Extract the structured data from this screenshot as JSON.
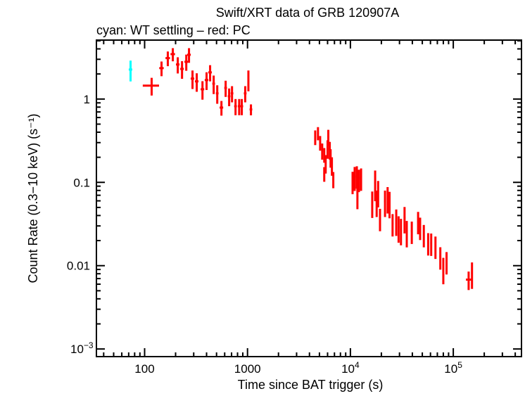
{
  "chart_data": {
    "type": "scatter",
    "title": "Swift/XRT data of GRB 120907A",
    "subtitle": "cyan: WT settling – red: PC",
    "xlabel": "Time since BAT trigger (s)",
    "ylabel": "Count Rate (0.3−10 keV) (s⁻¹)",
    "x_scale": "log",
    "y_scale": "log",
    "xlim": [
      34,
      460000
    ],
    "ylim": [
      0.00081,
      5.1
    ],
    "x_ticks": [
      {
        "value": 100,
        "label": "100"
      },
      {
        "value": 1000,
        "label": "1000"
      },
      {
        "value": 10000,
        "label": "10",
        "exp": "4"
      },
      {
        "value": 100000,
        "label": "10",
        "exp": "5"
      }
    ],
    "y_ticks": [
      {
        "value": 1,
        "label": "1"
      },
      {
        "value": 0.1,
        "label": "0.1"
      },
      {
        "value": 0.01,
        "label": "0.01"
      },
      {
        "value": 0.001,
        "label": "10",
        "exp": "−3"
      }
    ],
    "grid": false,
    "series": [
      {
        "name": "WT settling",
        "color": "#00ffff",
        "points": [
          [
            73,
            2.26,
            0.04,
            0.28
          ]
        ]
      },
      {
        "name": "PC",
        "color": "#ff0000",
        "points": [
          [
            117,
            1.45,
            0.18,
            0.24
          ],
          [
            146,
            2.35,
            0.05,
            0.2
          ],
          [
            168,
            3.1,
            0.05,
            0.2
          ],
          [
            188,
            3.46,
            0.05,
            0.18
          ],
          [
            210,
            2.6,
            0.04,
            0.22
          ],
          [
            231,
            2.3,
            0.04,
            0.24
          ],
          [
            254,
            2.8,
            0.04,
            0.22
          ],
          [
            270,
            3.4,
            0.04,
            0.2
          ],
          [
            292,
            1.76,
            0.04,
            0.25
          ],
          [
            321,
            1.63,
            0.04,
            0.25
          ],
          [
            365,
            1.31,
            0.04,
            0.25
          ],
          [
            400,
            1.69,
            0.04,
            0.24
          ],
          [
            433,
            2.09,
            0.04,
            0.22
          ],
          [
            469,
            1.53,
            0.03,
            0.25
          ],
          [
            508,
            1.17,
            0.03,
            0.25
          ],
          [
            558,
            0.79,
            0.04,
            0.2
          ],
          [
            613,
            1.36,
            0.03,
            0.22
          ],
          [
            663,
            1.08,
            0.03,
            0.24
          ],
          [
            707,
            1.17,
            0.03,
            0.22
          ],
          [
            765,
            0.82,
            0.03,
            0.22
          ],
          [
            830,
            0.82,
            0.03,
            0.22
          ],
          [
            880,
            0.82,
            0.03,
            0.22
          ],
          [
            950,
            1.17,
            0.03,
            0.22
          ],
          [
            1020,
            1.72,
            0.02,
            0.28
          ],
          [
            1080,
            0.75,
            0.03,
            0.15
          ],
          [
            4550,
            0.35,
            0.02,
            0.2
          ],
          [
            4840,
            0.39,
            0.02,
            0.18
          ],
          [
            5080,
            0.3,
            0.02,
            0.2
          ],
          [
            5320,
            0.24,
            0.02,
            0.22
          ],
          [
            5570,
            0.215,
            0.02,
            0.2
          ],
          [
            5570,
            0.127,
            0.02,
            0.2
          ],
          [
            5750,
            0.17,
            0.02,
            0.25
          ],
          [
            6000,
            0.256,
            0.02,
            0.25
          ],
          [
            6100,
            0.35,
            0.02,
            0.22
          ],
          [
            6300,
            0.247,
            0.02,
            0.24
          ],
          [
            6420,
            0.2,
            0.02,
            0.25
          ],
          [
            6610,
            0.16,
            0.02,
            0.25
          ],
          [
            6820,
            0.109,
            0.02,
            0.22
          ],
          [
            10500,
            0.103,
            0.02,
            0.3
          ],
          [
            11000,
            0.116,
            0.02,
            0.32
          ],
          [
            11550,
            0.12,
            0.02,
            0.3
          ],
          [
            12100,
            0.109,
            0.02,
            0.3
          ],
          [
            11700,
            0.068,
            0.02,
            0.3
          ],
          [
            12700,
            0.113,
            0.02,
            0.3
          ],
          [
            16300,
            0.0575,
            0.02,
            0.35
          ],
          [
            17400,
            0.099,
            0.02,
            0.4
          ],
          [
            18000,
            0.059,
            0.02,
            0.35
          ],
          [
            18600,
            0.077,
            0.02,
            0.35
          ],
          [
            19400,
            0.037,
            0.02,
            0.3
          ],
          [
            21700,
            0.059,
            0.02,
            0.35
          ],
          [
            23000,
            0.065,
            0.02,
            0.35
          ],
          [
            24000,
            0.057,
            0.02,
            0.35
          ],
          [
            25700,
            0.032,
            0.02,
            0.3
          ],
          [
            27900,
            0.035,
            0.02,
            0.35
          ],
          [
            29400,
            0.029,
            0.02,
            0.35
          ],
          [
            31000,
            0.027,
            0.02,
            0.35
          ],
          [
            33600,
            0.0375,
            0.02,
            0.35
          ],
          [
            35300,
            0.0255,
            0.02,
            0.35
          ],
          [
            39500,
            0.026,
            0.02,
            0.3
          ],
          [
            45500,
            0.034,
            0.02,
            0.3
          ],
          [
            47600,
            0.029,
            0.02,
            0.3
          ],
          [
            51700,
            0.0237,
            0.02,
            0.3
          ],
          [
            57000,
            0.0189,
            0.02,
            0.3
          ],
          [
            61000,
            0.0187,
            0.02,
            0.3
          ],
          [
            67100,
            0.0172,
            0.02,
            0.3
          ],
          [
            74800,
            0.0128,
            0.02,
            0.3
          ],
          [
            80000,
            0.0092,
            0.02,
            0.35
          ],
          [
            86000,
            0.0112,
            0.02,
            0.3
          ],
          [
            141000,
            0.0068,
            0.06,
            0.25
          ],
          [
            152000,
            0.0081,
            0.02,
            0.35
          ]
        ]
      }
    ]
  }
}
